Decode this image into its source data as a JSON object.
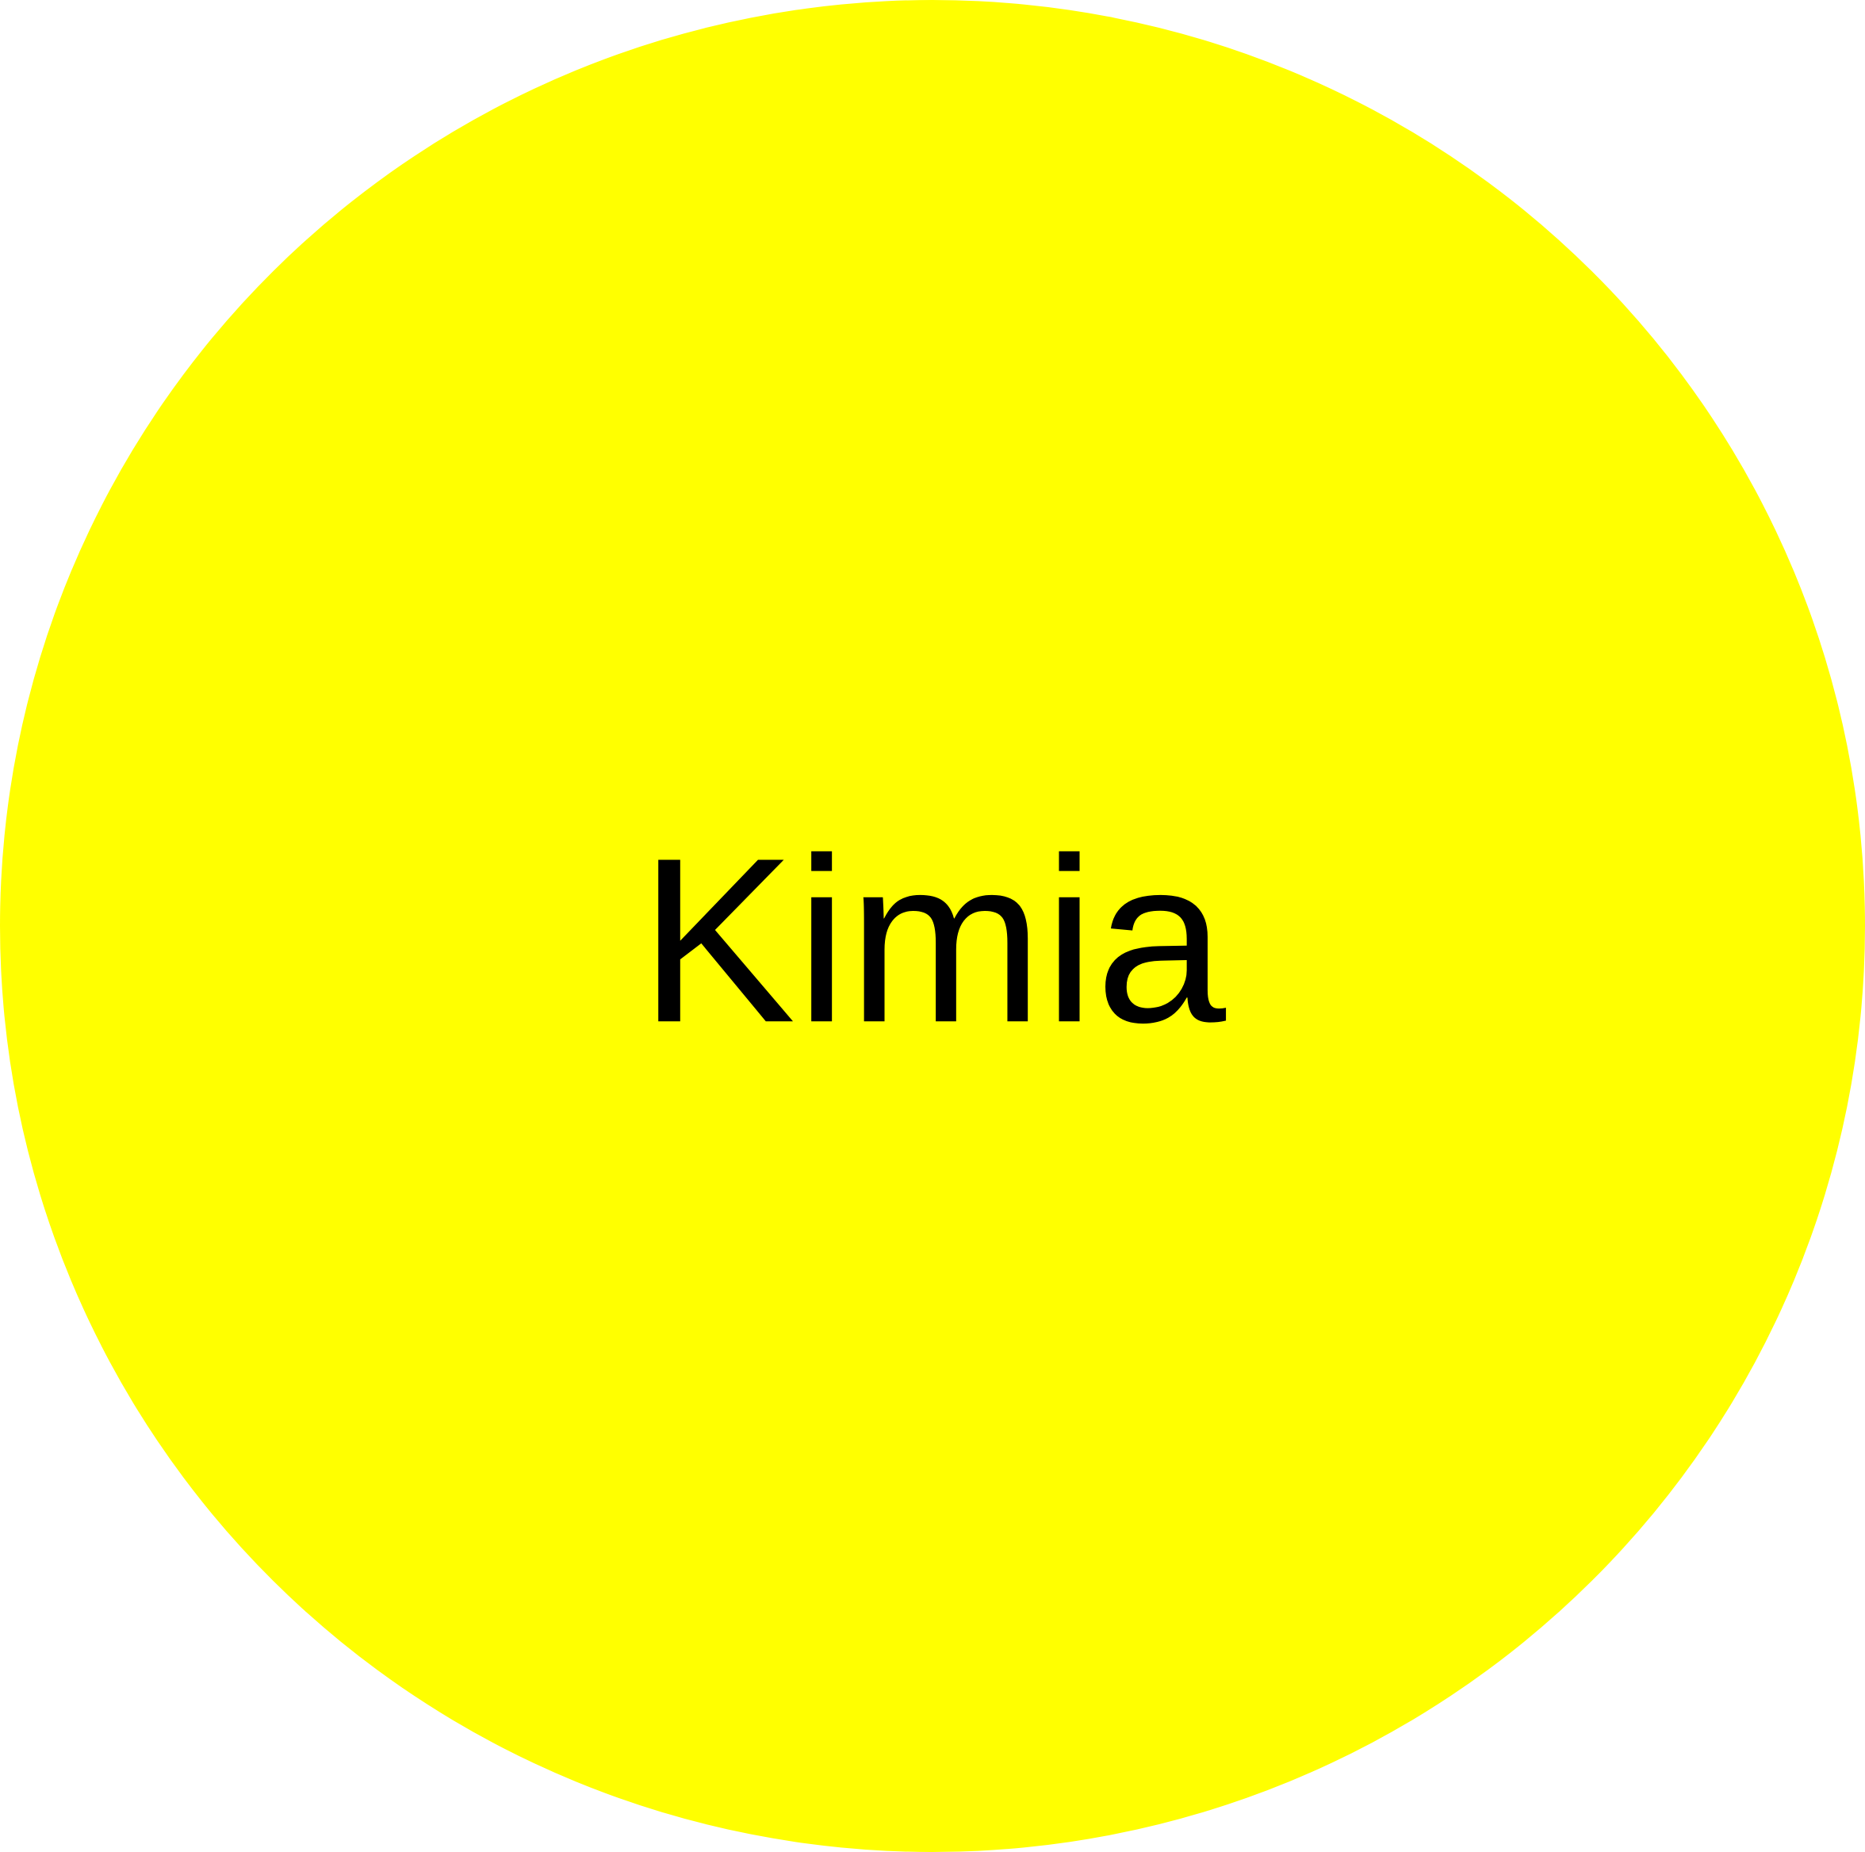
{
  "diagram": {
    "node": {
      "label": "Kimia",
      "fill_color": "#ffff00",
      "text_color": "#000000",
      "shape": "circle"
    }
  }
}
